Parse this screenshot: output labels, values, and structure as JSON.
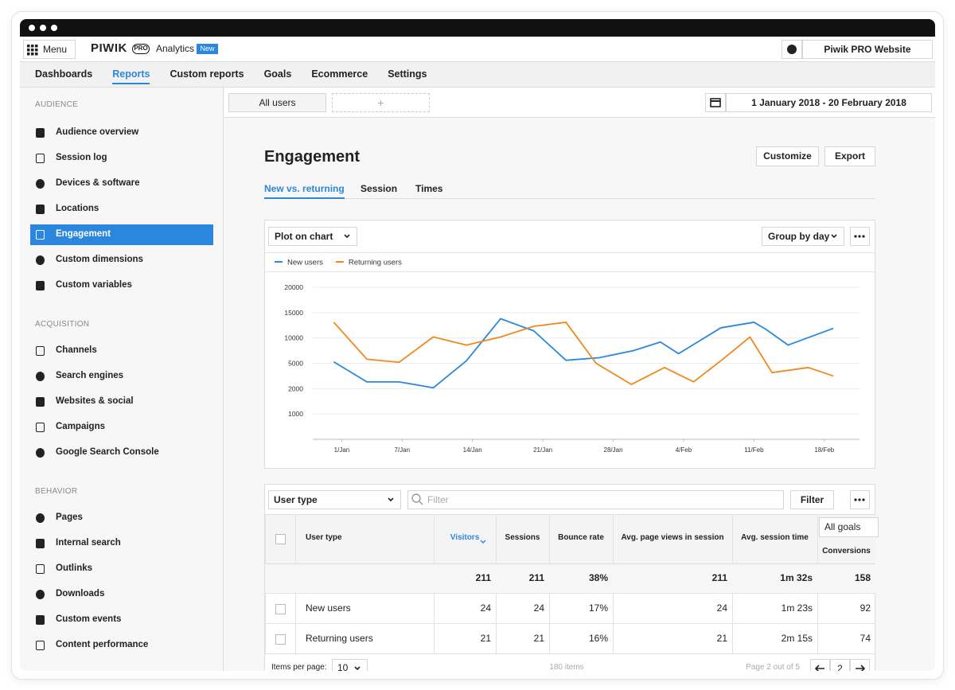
{
  "app": {
    "browser": {
      "menu": "Menu",
      "logo": "PIWIK",
      "logo_badge": "PRO",
      "product": "Analytics",
      "product_badge": "New",
      "website": "Piwik PRO Website"
    },
    "nav": {
      "items": [
        "Dashboards",
        "Reports",
        "Custom reports",
        "Goals",
        "Ecommerce",
        "Settings"
      ],
      "active": 1
    },
    "sidebar": [
      {
        "heading": "AUDIENCE",
        "items": [
          "Audience overview",
          "Session log",
          "Devices & software",
          "Locations",
          "Engagement",
          "Custom dimensions",
          "Custom variables"
        ],
        "active": 4
      },
      {
        "heading": "ACQUISITION",
        "items": [
          "Channels",
          "Search engines",
          "Websites & social",
          "Campaigns",
          "Google Search Console"
        ]
      },
      {
        "heading": "BEHAVIOR",
        "items": [
          "Pages",
          "Internal search",
          "Outlinks",
          "Downloads",
          "Custom events",
          "Content performance"
        ]
      }
    ],
    "segments": {
      "current": "All users",
      "add": "+"
    },
    "date_range": "1 January 2018 - 20 February 2018",
    "page": {
      "title": "Engagement",
      "buttons": [
        "Customize",
        "Export"
      ],
      "tabs": [
        "New vs. returning",
        "Session",
        "Times"
      ],
      "active_tab": 0
    },
    "chart_controls": {
      "plot": "Plot on chart",
      "group": "Group by day"
    },
    "table": {
      "dimension_select": "User type",
      "filter_placeholder": "Filter",
      "filter_button": "Filter",
      "goal_select": "All goals",
      "columns": [
        "User type",
        "Visitors",
        "Sessions",
        "Bounce rate",
        "Avg. page views in session",
        "Avg. session time",
        "Conversions"
      ],
      "sorted_column": 1,
      "totals": [
        211,
        211,
        "38%",
        211,
        "1m 32s",
        158
      ],
      "rows": [
        [
          "New users",
          24,
          24,
          "17%",
          24,
          "1m 23s",
          92
        ],
        [
          "Returning users",
          21,
          21,
          "16%",
          21,
          "2m 15s",
          74
        ]
      ],
      "pagination": {
        "label": "Items per page:",
        "per_page": 10,
        "total": "180 items",
        "page_info": "Page 2 out of 5",
        "page": 2
      }
    }
  },
  "chart_data": {
    "type": "line",
    "grid": true,
    "xlim": [
      -4.5,
      52.5
    ],
    "xticks": [
      {
        "value": 1,
        "label": "1/Jan"
      },
      {
        "value": 7,
        "label": "7/Jan"
      },
      {
        "value": 14,
        "label": "14/Jan"
      },
      {
        "value": 21,
        "label": "21/Jan"
      },
      {
        "value": 28,
        "label": "28/Jan"
      },
      {
        "value": 35,
        "label": "4/Feb"
      },
      {
        "value": 42,
        "label": "11/Feb"
      },
      {
        "value": 49,
        "label": "18/Feb"
      }
    ],
    "ylim": [
      0,
      20000
    ],
    "yticks": [
      1000,
      2000,
      5000,
      10000,
      15000,
      20000
    ],
    "series": [
      {
        "name": "New users",
        "color": "#2b87de",
        "x": [
          0.2,
          3.5,
          6.7,
          10.1,
          13.4,
          16.8,
          20.1,
          23.3,
          26.6,
          30,
          32.7,
          34.5,
          38.7,
          42,
          43.2,
          45.4,
          49.9
        ],
        "values": [
          5300,
          2800,
          2800,
          2100,
          5500,
          13800,
          11400,
          5600,
          6100,
          7500,
          9200,
          6900,
          12000,
          13100,
          11700,
          8600,
          11900
        ]
      },
      {
        "name": "Returning users",
        "color": "#f0891d",
        "x": [
          0.2,
          3.5,
          6.7,
          10.1,
          13.4,
          16.8,
          20.1,
          23.3,
          26.3,
          29.8,
          33.1,
          36,
          38.9,
          41.6,
          43.8,
          47.4,
          49.9
        ],
        "values": [
          13100,
          5800,
          5200,
          10200,
          8600,
          10200,
          12300,
          13100,
          5000,
          2500,
          4500,
          2800,
          5800,
          10200,
          3900,
          4500,
          3500
        ]
      }
    ]
  }
}
